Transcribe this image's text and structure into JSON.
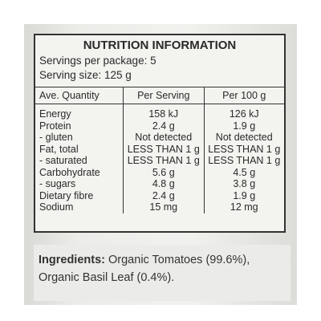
{
  "header": {
    "title": "NUTRITION INFORMATION",
    "servings": "Servings per package: 5",
    "serving_size": "Serving size: 125 g"
  },
  "table": {
    "columns": [
      "Ave. Quantity",
      "Per Serving",
      "Per 100 g"
    ],
    "rows": [
      [
        "Energy",
        "158 kJ",
        "126 kJ"
      ],
      [
        "Protein",
        "2.4 g",
        "1.9 g"
      ],
      [
        "- gluten",
        "Not detected",
        "Not detected"
      ],
      [
        "Fat, total",
        "LESS THAN 1 g",
        "LESS THAN 1 g"
      ],
      [
        "- saturated",
        "LESS THAN 1 g",
        "LESS THAN 1 g"
      ],
      [
        "Carbohydrate",
        "5.6 g",
        "4.5 g"
      ],
      [
        "- sugars",
        "4.8 g",
        "3.8 g"
      ],
      [
        "Dietary fibre",
        "2.4 g",
        "1.9 g"
      ],
      [
        "Sodium",
        "15 mg",
        "12 mg"
      ]
    ]
  },
  "ingredients": {
    "label": "Ingredients:",
    "lines": [
      "Organic Tomatoes (99.6%),",
      "Organic Basil Leaf (0.4%)."
    ]
  }
}
